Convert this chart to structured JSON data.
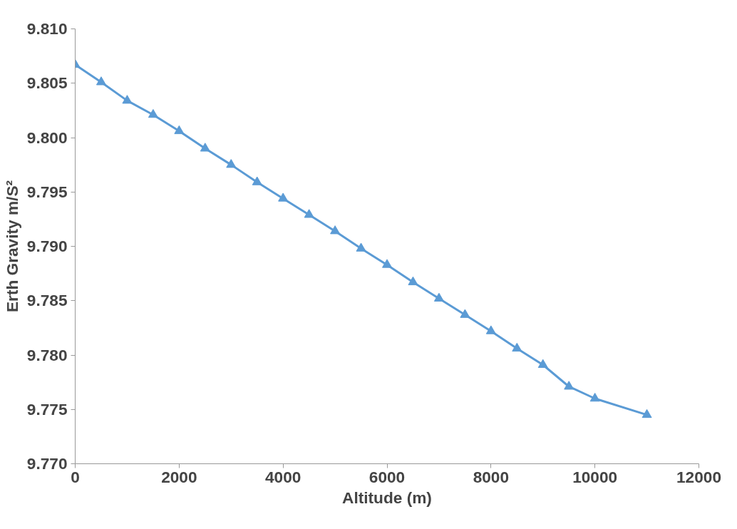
{
  "chart_data": {
    "type": "line",
    "xlabel": "Altitude (m)",
    "ylabel": "Erth Gravity m/S²",
    "x": [
      0,
      500,
      1000,
      1500,
      2000,
      2500,
      3000,
      3500,
      4000,
      4500,
      5000,
      5500,
      6000,
      6500,
      7000,
      7500,
      8000,
      8500,
      9000,
      9500,
      10000,
      11000
    ],
    "series": [
      {
        "color": "#5b9bd5",
        "values": [
          9.8067,
          9.8051,
          9.8034,
          9.8021,
          9.8006,
          9.799,
          9.7975,
          9.7959,
          9.7944,
          9.7929,
          9.7914,
          9.7898,
          9.7883,
          9.7867,
          9.7852,
          9.7837,
          9.7822,
          9.7806,
          9.7791,
          9.7771,
          9.776,
          9.7745
        ]
      }
    ],
    "xlim": [
      0,
      12000
    ],
    "xticks": [
      0,
      2000,
      4000,
      6000,
      8000,
      10000,
      12000
    ],
    "ylim": [
      9.77,
      9.81
    ],
    "yticks": [
      {
        "value": 9.77,
        "label": "9.770"
      },
      {
        "value": 9.775,
        "label": "9.775"
      },
      {
        "value": 9.78,
        "label": "9.780"
      },
      {
        "value": 9.785,
        "label": "9.785"
      },
      {
        "value": 9.79,
        "label": "9.790"
      },
      {
        "value": 9.795,
        "label": "9.795"
      },
      {
        "value": 9.8,
        "label": "9.800"
      },
      {
        "value": 9.805,
        "label": "9.805"
      },
      {
        "value": 9.81,
        "label": "9.810"
      }
    ],
    "grid": false,
    "marker": "triangle",
    "line_style": "solid"
  }
}
